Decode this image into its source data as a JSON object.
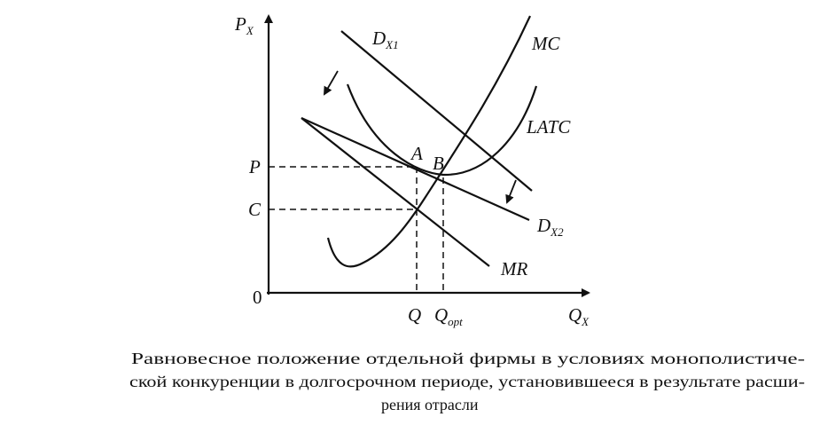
{
  "axes": {
    "y": {
      "text": "P",
      "sub": "X"
    },
    "x": {
      "text": "Q",
      "sub": "X"
    },
    "origin": "0"
  },
  "levels": {
    "p": "P",
    "c": "C",
    "q": "Q",
    "q_opt": {
      "text": "Q",
      "sub": "opt"
    }
  },
  "curves": {
    "d1": {
      "text": "D",
      "sub": "X1"
    },
    "d2": {
      "text": "D",
      "sub": "X2"
    },
    "mc": "MC",
    "latc": "LATC",
    "mr": "MR"
  },
  "points": {
    "a": "A",
    "b": "B"
  },
  "caption": [
    "Равновесное положение отдельной фирмы в условиях монополистиче-",
    "ской конкуренции в долгосрочном периоде, установившееся в результате расши-",
    "рения отрасли"
  ]
}
